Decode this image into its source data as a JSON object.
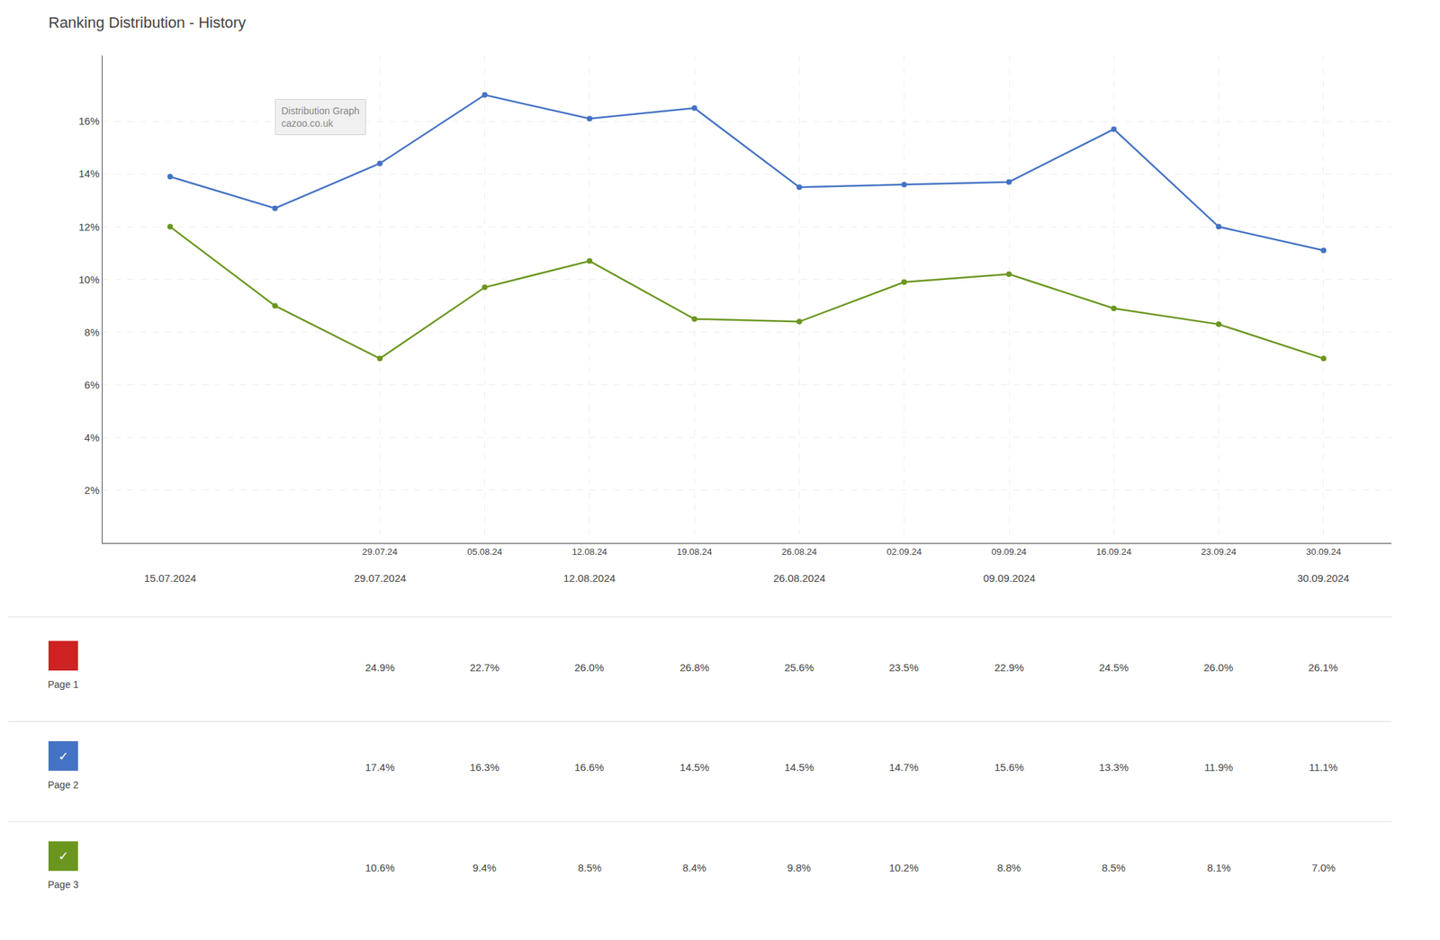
{
  "chart_data": {
    "type": "line",
    "title": "Ranking Distribution - History",
    "categories": [
      null,
      null,
      "29.07.24",
      "05.08.24",
      "12.08.24",
      "19.08.24",
      "26.08.24",
      "02.09.24",
      "09.09.24",
      "16.09.24",
      "23.09.24",
      "30.09.24"
    ],
    "major_labels": [
      "15.07.2024",
      null,
      "29.07.2024",
      null,
      "12.08.2024",
      null,
      "26.08.2024",
      null,
      "09.09.2024",
      null,
      null,
      "30.09.2024"
    ],
    "series": [
      {
        "color": "#4472C4",
        "values": [
          13.9,
          12.7,
          14.4,
          17.0,
          16.1,
          16.5,
          13.5,
          13.6,
          13.7,
          15.7,
          12.0,
          11.1
        ]
      },
      {
        "color": "#6a961f",
        "values": [
          12.0,
          9.0,
          7.0,
          9.7,
          10.7,
          8.5,
          8.4,
          9.9,
          10.2,
          8.9,
          8.3,
          7.0
        ]
      }
    ],
    "ylim": [
      0,
      18.5
    ],
    "yticks": [
      {
        "value": 2,
        "label": "2%"
      },
      {
        "value": 4,
        "label": "4%"
      },
      {
        "value": 6,
        "label": "6%"
      },
      {
        "value": 8,
        "label": "8%"
      },
      {
        "value": 10,
        "label": "10%"
      },
      {
        "value": 12,
        "label": "12%"
      },
      {
        "value": 14,
        "label": "14%"
      },
      {
        "value": 16,
        "label": "16%"
      }
    ],
    "grid": true,
    "marker": "circle",
    "line_style": "solid",
    "annotations": [
      "Distribution Graph",
      "cazoo.co.uk"
    ],
    "table": [
      {
        "name": "Page 1",
        "color": "#cc2222",
        "values": [
          null,
          null,
          24.9,
          22.7,
          26.0,
          26.8,
          25.6,
          23.5,
          22.9,
          24.5,
          26.0,
          26.1
        ],
        "value_labels": [
          null,
          null,
          "24.9%",
          "22.7%",
          "26.0%",
          "26.8%",
          "25.6%",
          "23.5%",
          "22.9%",
          "24.5%",
          "26.0%",
          "26.1%"
        ]
      },
      {
        "name": "Page 2",
        "color": "#4472C4",
        "icon": "✓",
        "values": [
          null,
          null,
          17.4,
          16.3,
          16.6,
          14.5,
          14.5,
          14.7,
          15.6,
          13.3,
          11.9,
          11.1
        ],
        "value_labels": [
          null,
          null,
          "17.4%",
          "16.3%",
          "16.6%",
          "14.5%",
          "14.5%",
          "14.7%",
          "15.6%",
          "13.3%",
          "11.9%",
          "11.1%"
        ]
      },
      {
        "name": "Page 3",
        "color": "#6a961f",
        "icon": "✓",
        "values": [
          null,
          null,
          10.6,
          9.4,
          8.5,
          8.4,
          9.8,
          10.2,
          8.8,
          8.5,
          8.1,
          7.0
        ],
        "value_labels": [
          null,
          null,
          "10.6%",
          "9.4%",
          "8.5%",
          "8.4%",
          "9.8%",
          "10.2%",
          "8.8%",
          "8.5%",
          "8.1%",
          "7.0%"
        ]
      }
    ]
  }
}
